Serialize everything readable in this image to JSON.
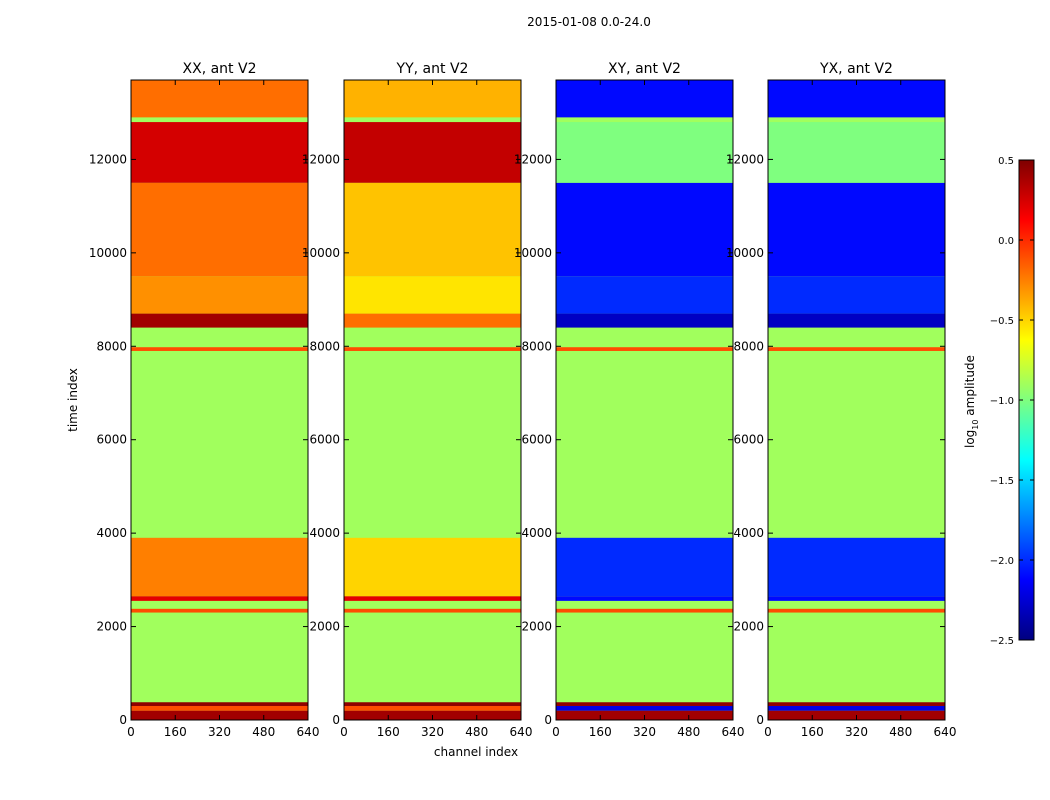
{
  "figure_title": "2015-01-08 0.0-24.0",
  "xlabel": "channel index",
  "ylabel": "time index",
  "colorbar": {
    "label_main": "log",
    "label_sub": "10",
    "label_rest": " amplitude",
    "range": [
      -2.5,
      0.5
    ],
    "ticks": [
      "0.5",
      "0.0",
      "−0.5",
      "−1.0",
      "−1.5",
      "−2.0",
      "−2.5"
    ],
    "tick_values": [
      0.5,
      0.0,
      -0.5,
      -1.0,
      -1.5,
      -2.0,
      -2.5
    ],
    "colormap": "jet",
    "jet_stops": [
      "#00007f",
      "#0000ff",
      "#007fff",
      "#00ffff",
      "#7fff7f",
      "#ffff00",
      "#ff7f00",
      "#ff0000",
      "#7f0000"
    ]
  },
  "chart_data": {
    "type": "heatmap",
    "title": "2015-01-08 0.0-24.0",
    "xlabel": "channel index",
    "ylabel": "time index",
    "xlim": [
      0,
      640
    ],
    "ylim": [
      0,
      13700
    ],
    "x_ticks": [
      "0",
      "160",
      "320",
      "480",
      "640"
    ],
    "x_tick_values": [
      0,
      160,
      320,
      480,
      640
    ],
    "y_ticks": [
      "0",
      "2000",
      "4000",
      "6000",
      "8000",
      "10000",
      "12000"
    ],
    "y_tick_values": [
      0,
      2000,
      4000,
      6000,
      8000,
      10000,
      12000
    ],
    "value_label": "log10 amplitude",
    "value_range": [
      -2.5,
      0.5
    ],
    "flagged_value": -0.9,
    "panels": [
      {
        "title": "XX, ant V2",
        "bands": [
          {
            "t0": 0,
            "t1": 200,
            "v": 0.4
          },
          {
            "t0": 200,
            "t1": 300,
            "v": -0.1
          },
          {
            "t0": 300,
            "t1": 380,
            "v": 0.45
          },
          {
            "t0": 2300,
            "t1": 2380,
            "v": -0.1
          },
          {
            "t0": 2550,
            "t1": 2650,
            "v": 0.2
          },
          {
            "t0": 2650,
            "t1": 3900,
            "v": -0.25
          },
          {
            "t0": 7900,
            "t1": 7980,
            "v": -0.1
          },
          {
            "t0": 8400,
            "t1": 8700,
            "v": 0.4
          },
          {
            "t0": 8700,
            "t1": 9500,
            "v": -0.3
          },
          {
            "t0": 9500,
            "t1": 11500,
            "v": -0.2
          },
          {
            "t0": 11500,
            "t1": 12800,
            "v": 0.25
          },
          {
            "t0": 12800,
            "t1": 12900,
            "v": -0.9
          },
          {
            "t0": 12900,
            "t1": 13700,
            "v": -0.2
          }
        ]
      },
      {
        "title": "YY, ant V2",
        "bands": [
          {
            "t0": 0,
            "t1": 200,
            "v": 0.4
          },
          {
            "t0": 200,
            "t1": 300,
            "v": -0.1
          },
          {
            "t0": 300,
            "t1": 380,
            "v": 0.45
          },
          {
            "t0": 2300,
            "t1": 2380,
            "v": -0.1
          },
          {
            "t0": 2550,
            "t1": 2650,
            "v": 0.2
          },
          {
            "t0": 2650,
            "t1": 3900,
            "v": -0.5
          },
          {
            "t0": 7900,
            "t1": 7980,
            "v": -0.1
          },
          {
            "t0": 8400,
            "t1": 8700,
            "v": -0.2
          },
          {
            "t0": 8700,
            "t1": 9500,
            "v": -0.55
          },
          {
            "t0": 9500,
            "t1": 11500,
            "v": -0.45
          },
          {
            "t0": 11500,
            "t1": 12800,
            "v": 0.3
          },
          {
            "t0": 12800,
            "t1": 12900,
            "v": -0.9
          },
          {
            "t0": 12900,
            "t1": 13700,
            "v": -0.4
          }
        ]
      },
      {
        "title": "XY, ant V2",
        "bands": [
          {
            "t0": 0,
            "t1": 200,
            "v": 0.4
          },
          {
            "t0": 200,
            "t1": 300,
            "v": -2.2
          },
          {
            "t0": 300,
            "t1": 380,
            "v": 0.45
          },
          {
            "t0": 2300,
            "t1": 2380,
            "v": -0.1
          },
          {
            "t0": 2550,
            "t1": 2650,
            "v": -2.1
          },
          {
            "t0": 2650,
            "t1": 3900,
            "v": -2.0
          },
          {
            "t0": 7900,
            "t1": 7980,
            "v": -0.1
          },
          {
            "t0": 8400,
            "t1": 8700,
            "v": -2.3
          },
          {
            "t0": 8700,
            "t1": 9500,
            "v": -2.0
          },
          {
            "t0": 9500,
            "t1": 11500,
            "v": -2.1
          },
          {
            "t0": 11500,
            "t1": 12800,
            "v": -1.0
          },
          {
            "t0": 12800,
            "t1": 12900,
            "v": -0.9
          },
          {
            "t0": 12900,
            "t1": 13700,
            "v": -2.1
          }
        ]
      },
      {
        "title": "YX, ant V2",
        "bands": [
          {
            "t0": 0,
            "t1": 200,
            "v": 0.4
          },
          {
            "t0": 200,
            "t1": 300,
            "v": -2.2
          },
          {
            "t0": 300,
            "t1": 380,
            "v": 0.45
          },
          {
            "t0": 2300,
            "t1": 2380,
            "v": -0.1
          },
          {
            "t0": 2550,
            "t1": 2650,
            "v": -2.1
          },
          {
            "t0": 2650,
            "t1": 3900,
            "v": -2.0
          },
          {
            "t0": 7900,
            "t1": 7980,
            "v": -0.1
          },
          {
            "t0": 8400,
            "t1": 8700,
            "v": -2.3
          },
          {
            "t0": 8700,
            "t1": 9500,
            "v": -2.0
          },
          {
            "t0": 9500,
            "t1": 11500,
            "v": -2.1
          },
          {
            "t0": 11500,
            "t1": 12800,
            "v": -1.0
          },
          {
            "t0": 12800,
            "t1": 12900,
            "v": -0.9
          },
          {
            "t0": 12900,
            "t1": 13700,
            "v": -2.1
          }
        ]
      }
    ]
  }
}
